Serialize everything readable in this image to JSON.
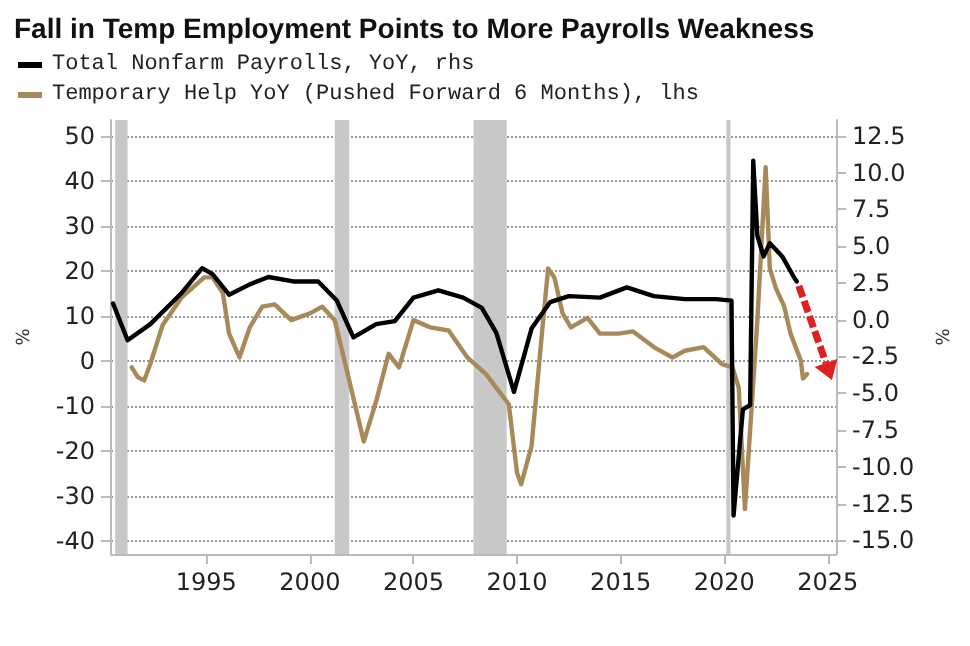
{
  "chart_data": {
    "type": "line",
    "title": "Fall in Temp Employment Points to More Payrolls Weakness",
    "ylabel": "%",
    "y2label": "%",
    "series": [
      {
        "name": "Total Nonfarm Payrolls, YoY, rhs",
        "color": "#000000",
        "axis": "y2",
        "x": [
          1990.5,
          1991.2,
          1992.3,
          1993.8,
          1994.8,
          1995.3,
          1996.1,
          1997.1,
          1998,
          1999.2,
          2000.4,
          2001.3,
          2002.1,
          2003.2,
          2004.1,
          2005,
          2006.2,
          2007.4,
          2008.3,
          2009,
          2009.85,
          2010.7,
          2011.6,
          2012.5,
          2014,
          2015.3,
          2016.6,
          2018.1,
          2019.6,
          2020.35,
          2020.45,
          2020.9,
          2021.25,
          2021.4,
          2021.6,
          2021.9,
          2022.2,
          2022.8,
          2023.4,
          2023.5
        ],
        "values": [
          1.1,
          -1.4,
          -0.3,
          1.8,
          3.5,
          3.1,
          1.7,
          2.4,
          2.9,
          2.6,
          2.6,
          1.3,
          -1.2,
          -0.3,
          -0.1,
          1.5,
          2,
          1.5,
          0.8,
          -0.9,
          -4.9,
          -0.6,
          1.2,
          1.6,
          1.5,
          2.2,
          1.6,
          1.4,
          1.4,
          1.3,
          -13.3,
          -6.1,
          -5.8,
          10.8,
          5.7,
          4.3,
          5.2,
          4.3,
          2.8,
          2.6
        ]
      },
      {
        "name": "Temporary Help YoY (Pushed Forward 6 Months), lhs",
        "color": "#a88a5a",
        "x": [
          1991.4,
          1991.7,
          1992,
          1992.3,
          1992.9,
          1993.8,
          1994.9,
          1995.3,
          1995.8,
          1996.1,
          1996.6,
          1997.1,
          1997.7,
          1998.3,
          1999.1,
          2000,
          2000.6,
          2001.2,
          2001.9,
          2002.6,
          2003.2,
          2003.8,
          2004.3,
          2005,
          2005.8,
          2006.7,
          2007.6,
          2008.5,
          2009.6,
          2010,
          2010.2,
          2010.7,
          2011.2,
          2011.5,
          2011.8,
          2012.2,
          2012.6,
          2013.4,
          2014,
          2014.9,
          2015.6,
          2016.6,
          2017.5,
          2018.1,
          2019,
          2019.9,
          2020.4,
          2020.7,
          2021,
          2021.3,
          2021.6,
          2022,
          2022.2,
          2022.5,
          2022.9,
          2023.2,
          2023.7,
          2023.8,
          2024
        ],
        "values": [
          -1.5,
          -3.7,
          -4.4,
          -0.7,
          8,
          14,
          18.5,
          18.5,
          15,
          6,
          0.7,
          7.4,
          12,
          12.5,
          9,
          10.5,
          12,
          9,
          -4.4,
          -18,
          -9,
          1.5,
          -1.5,
          9,
          7.4,
          6.7,
          0.7,
          -3,
          -9.7,
          -25,
          -27.5,
          -19,
          6,
          20.5,
          18.5,
          10.5,
          7.4,
          9.5,
          6,
          6,
          6.5,
          3,
          0.7,
          2.2,
          3,
          -0.8,
          -1.5,
          -6,
          -33,
          -12,
          9,
          43,
          20.5,
          16,
          12,
          6,
          0,
          -4,
          -3
        ]
      }
    ],
    "xlim": [
      1990.4,
      2025.4
    ],
    "xticks": [
      1995,
      2000,
      2005,
      2010,
      2015,
      2020,
      2025
    ],
    "ylim": [
      -43,
      53.5
    ],
    "yticks": [
      -40,
      -30,
      -20,
      -10,
      0,
      10,
      20,
      30,
      40,
      50
    ],
    "y2lim": [
      -15.92,
      13.57
    ],
    "y2ticks": [
      {
        "value": -15,
        "label": "-15.0"
      },
      {
        "value": -12.5,
        "label": "-12.5"
      },
      {
        "value": -10,
        "label": "-10.0"
      },
      {
        "value": -7.5,
        "label": "-7.5"
      },
      {
        "value": -5,
        "label": "-5.0"
      },
      {
        "value": -2.5,
        "label": "-2.5"
      },
      {
        "value": 0,
        "label": "0.0"
      },
      {
        "value": 2.5,
        "label": "2.5"
      },
      {
        "value": 5,
        "label": "5.0"
      },
      {
        "value": 7.5,
        "label": "7.5"
      },
      {
        "value": 10,
        "label": "10.0"
      },
      {
        "value": 12.5,
        "label": "12.5"
      }
    ],
    "bands": [
      {
        "axis": "x",
        "from": 1990.6,
        "to": 1991.2,
        "color": "#c8c8c8"
      },
      {
        "axis": "x",
        "from": 2001.2,
        "to": 2001.9,
        "color": "#c8c8c8"
      },
      {
        "axis": "x",
        "from": 2007.9,
        "to": 2009.5,
        "color": "#c8c8c8"
      },
      {
        "axis": "x",
        "from": 2020.1,
        "to": 2020.3,
        "color": "#c8c8c8"
      }
    ],
    "grid": "y",
    "legend": "top left",
    "marker": "none",
    "line_style": "solid"
  }
}
